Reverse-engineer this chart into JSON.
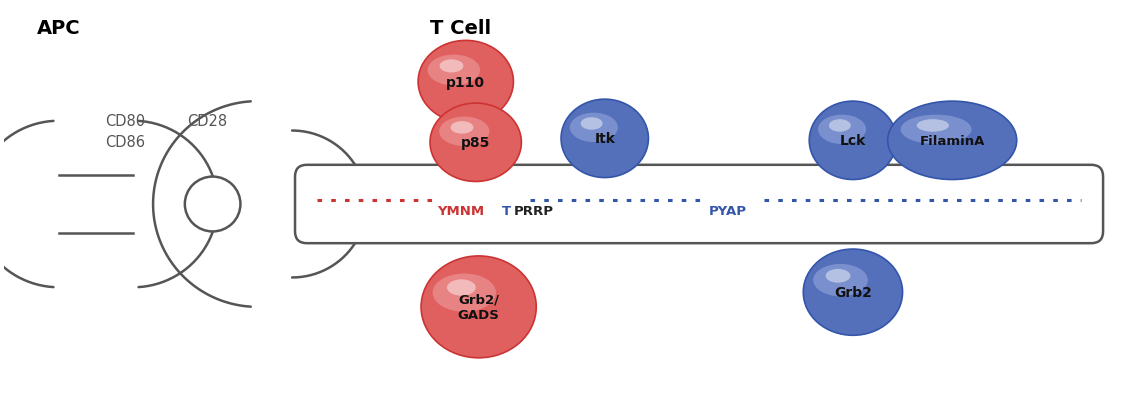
{
  "title_apc": "APC",
  "title_tcell": "T Cell",
  "bg_color": "#ffffff",
  "red_color": "#cc3333",
  "red_mid": "#e06060",
  "red_light": "#f0a0a0",
  "blue_color": "#3355aa",
  "blue_mid": "#5570bb",
  "blue_light": "#99aadd",
  "line_color": "#555555",
  "label_color": "#555555",
  "seq_red": "YMNM",
  "seq_blue_T": "T",
  "seq_black": "PRRP",
  "seq_pyap": "PYAP",
  "apc_label": "APC",
  "tcell_label": "T Cell",
  "cd80_label": "CD80\nCD86",
  "cd28_label": "CD28"
}
